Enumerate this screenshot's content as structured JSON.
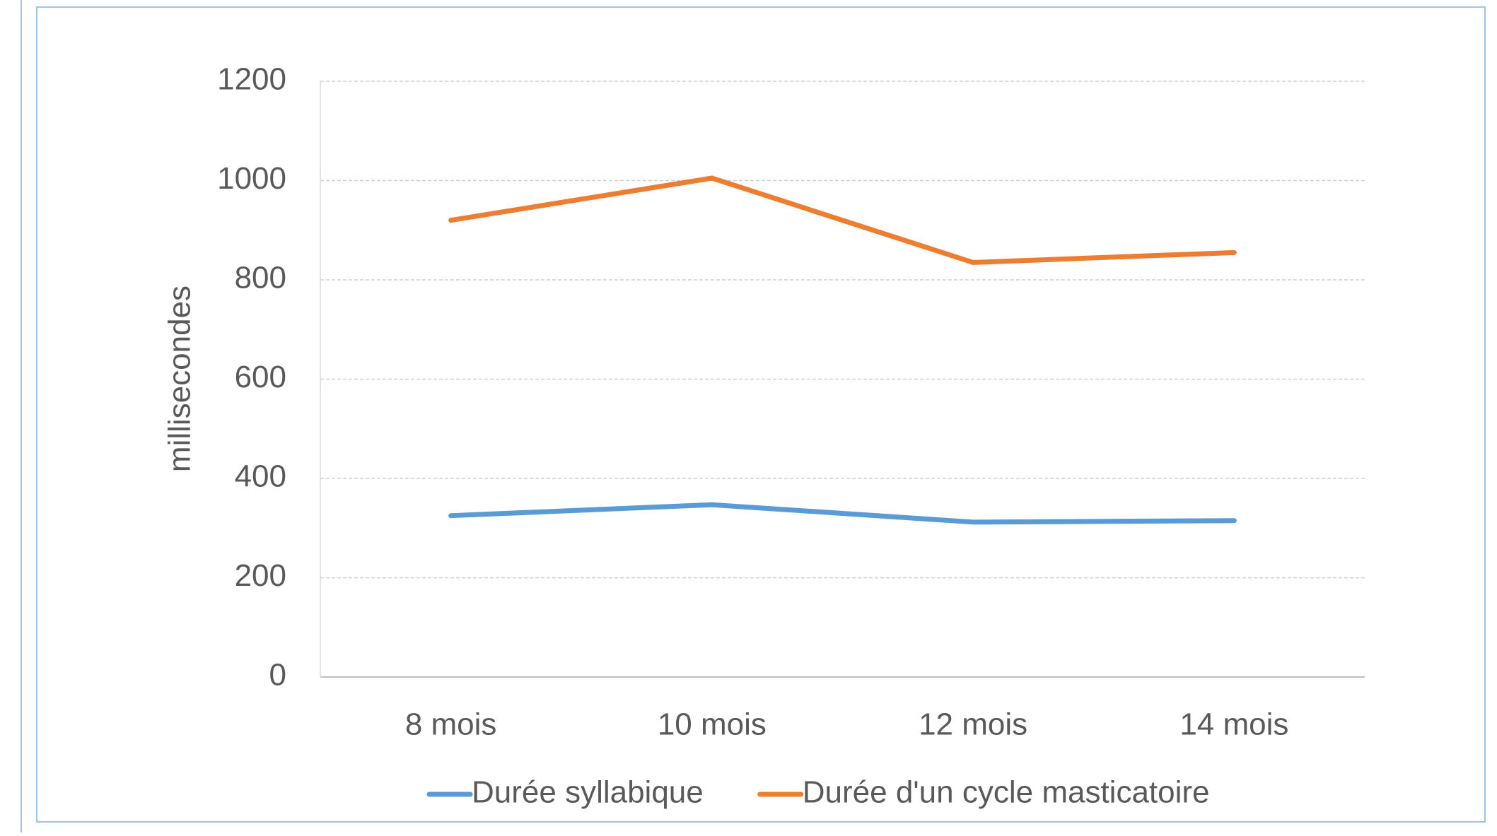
{
  "chart_data": {
    "type": "line",
    "y_label": "millisecondes",
    "categories": [
      "8 mois",
      "10 mois",
      "12 mois",
      "14 mois"
    ],
    "series": [
      {
        "name": "Durée syllabique",
        "color": "#5b9bd5",
        "values": [
          325,
          347,
          312,
          315
        ]
      },
      {
        "name": "Durée d'un cycle masticatoire",
        "color": "#ed7d31",
        "values": [
          920,
          1005,
          835,
          855
        ]
      }
    ],
    "ylim": [
      0,
      1200
    ],
    "yticks": [
      0,
      200,
      400,
      600,
      800,
      1000,
      1200
    ],
    "grid": true,
    "legend": "bottom"
  }
}
